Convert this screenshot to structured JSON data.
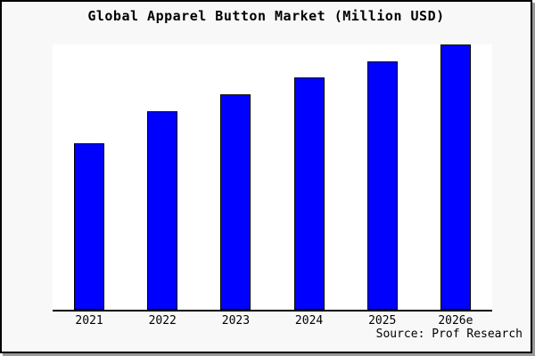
{
  "window": {
    "background": "#f8f8f8",
    "plot_background": "#ffffff",
    "frame_border_color": "#000000",
    "shadow_color": "#999999"
  },
  "chart_data": {
    "type": "bar",
    "title": "Global Apparel Button Market (Million USD)",
    "categories": [
      "2021",
      "2022",
      "2023",
      "2024",
      "2025",
      "2026e"
    ],
    "values": [
      62.7,
      75.0,
      81.3,
      87.7,
      93.7,
      100.0
    ],
    "value_scale": "percent-of-tallest-bar (y-axis is unlabeled in the figure)",
    "xlabel": "",
    "ylabel": "",
    "ylim": [
      0,
      100
    ],
    "grid": false,
    "legend": false,
    "bar_color": "#0000ff",
    "bar_border_color": "#000000",
    "axis_line_color": "#000000"
  },
  "footer": {
    "source_label": "Source: Prof Research"
  }
}
